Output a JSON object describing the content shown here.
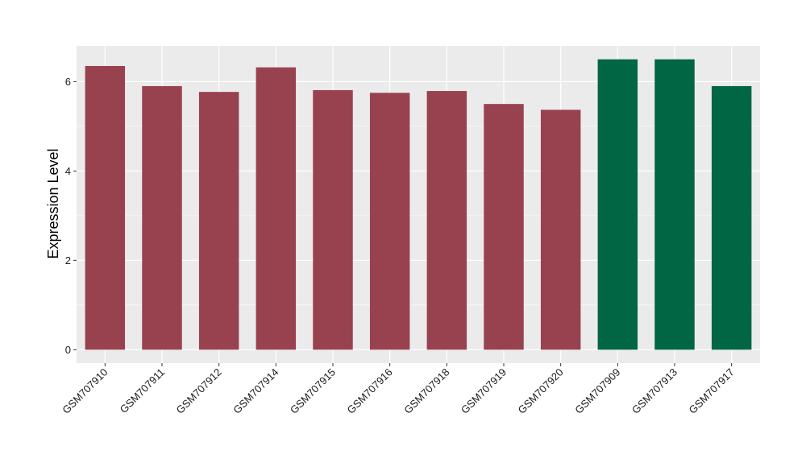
{
  "chart_data": {
    "type": "bar",
    "title": "",
    "xlabel": "",
    "ylabel": "Expression Level",
    "ylim": [
      -0.3,
      6.8
    ],
    "yticks": [
      0,
      2,
      4,
      6
    ],
    "grid": true,
    "categories": [
      "GSM707910",
      "GSM707911",
      "GSM707912",
      "GSM707914",
      "GSM707915",
      "GSM707916",
      "GSM707918",
      "GSM707919",
      "GSM707920",
      "GSM707909",
      "GSM707913",
      "GSM707917"
    ],
    "values": [
      6.35,
      5.9,
      5.77,
      6.32,
      5.81,
      5.75,
      5.79,
      5.5,
      5.37,
      6.5,
      6.5,
      5.9
    ],
    "bar_colors": [
      "#99424f",
      "#99424f",
      "#99424f",
      "#99424f",
      "#99424f",
      "#99424f",
      "#99424f",
      "#99424f",
      "#99424f",
      "#006644",
      "#006644",
      "#006644"
    ],
    "panel_color": "#ebebeb",
    "grid_color": "#ffffff"
  }
}
